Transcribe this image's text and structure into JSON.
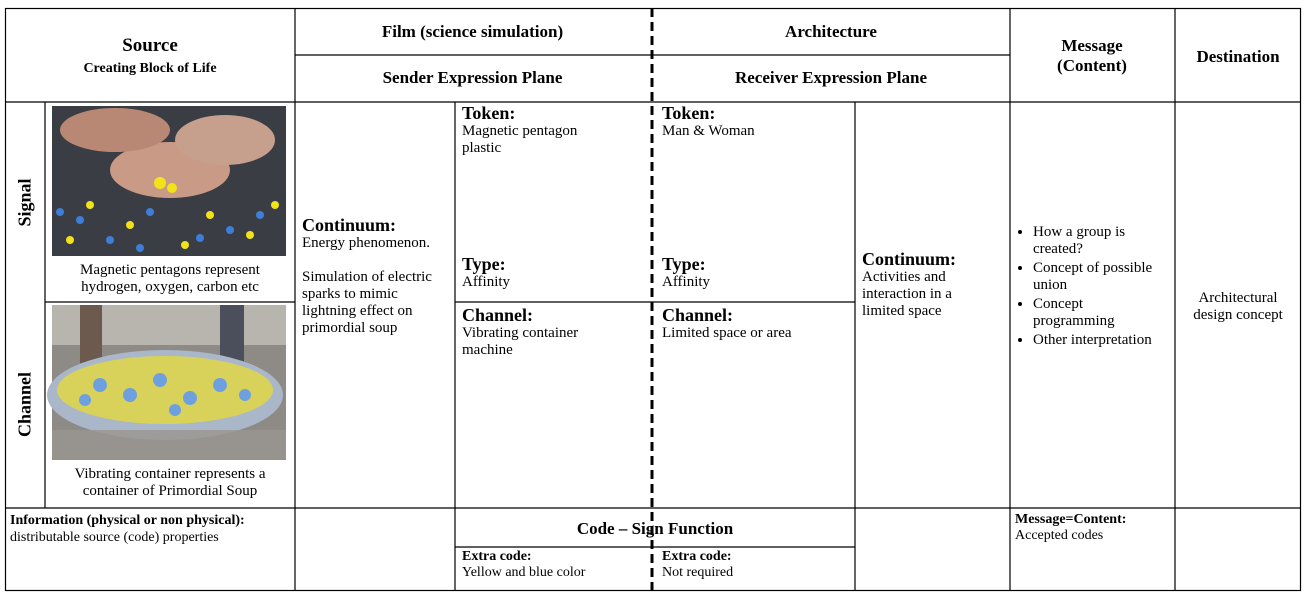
{
  "table": {
    "header": {
      "source": "Source",
      "source_subtitle": "Creating Block of Life",
      "film": "Film (science simulation)",
      "architecture": "Architecture",
      "sender": "Sender Expression Plane",
      "receiver": "Receiver Expression Plane",
      "message": "Message (Content)",
      "destination": "Destination"
    },
    "body": {
      "signal_label": "Signal",
      "channel_label": "Channel",
      "signal_caption": "Magnetic pentagons represent hydrogen, oxygen, carbon etc",
      "channel_caption": "Vibrating container represents a container of Primordial Soup",
      "sender_continuum": {
        "heading": "Continuum:",
        "text": "Energy phenomenon.",
        "text2": "Simulation of electric sparks to mimic lightning effect on primordial soup"
      },
      "sender_token": {
        "heading": "Token:",
        "text": "Magnetic pentagon plastic"
      },
      "sender_type": {
        "heading": "Type:",
        "text": "Affinity"
      },
      "sender_channel": {
        "heading": "Channel:",
        "text": "Vibrating container machine"
      },
      "receiver_token": {
        "heading": "Token:",
        "text": "Man & Woman"
      },
      "receiver_type": {
        "heading": "Type:",
        "text": "Affinity"
      },
      "receiver_channel": {
        "heading": "Channel:",
        "text": "Limited space or area"
      },
      "receiver_continuum": {
        "heading": "Continuum:",
        "text": "Activities and interaction in a limited space"
      },
      "message_bullets": [
        "How a group is created?",
        "Concept of possible union",
        "Concept programming",
        "Other interpretation"
      ],
      "destination": "Architectural design concept"
    },
    "footer": {
      "information_heading": "Information (physical or non physical):",
      "information_text": " distributable source (code) properties",
      "code_sign_function": "Code – Sign Function",
      "sender_extra": {
        "heading": "Extra code:",
        "text": "Yellow and blue color"
      },
      "receiver_extra": {
        "heading": "Extra code:",
        "text": "Not required"
      },
      "message_heading": "Message=Content:",
      "message_text": "Accepted codes"
    }
  }
}
